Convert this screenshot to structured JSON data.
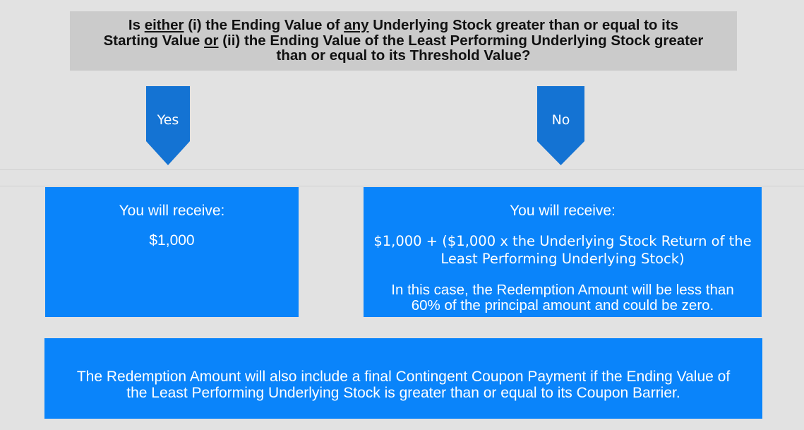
{
  "question": {
    "line1": {
      "p1": "Is ",
      "u1": "either",
      "p2": " (i) the Ending Value of ",
      "u2": "any",
      "p3": " Underlying Stock greater than or equal to its"
    },
    "line2": {
      "p1": "Starting Value ",
      "u1": "or",
      "p2": " (ii) the Ending Value of the Least Performing Underlying Stock greater"
    },
    "line3": "than or equal to its Threshold Value?"
  },
  "branches": {
    "yes_label": "Yes",
    "no_label": "No"
  },
  "outcome_yes": {
    "heading": "You will receive:",
    "amount": "$1,000"
  },
  "outcome_no": {
    "heading": "You will receive:",
    "formula_line1": "$1,000 + ($1,000 x the Underlying Stock Return of the",
    "formula_line2": "Least Performing Underlying Stock)",
    "note_line1": "In this case, the Redemption Amount will be less than",
    "note_line2": "60% of the principal amount and could be zero."
  },
  "footer_note": {
    "line1": "The Redemption Amount will also include a final Contingent Coupon Payment if the Ending Value of",
    "line2": "the Least Performing Underlying Stock is greater than or equal to its Coupon Barrier."
  },
  "colors": {
    "background": "#e2e2e2",
    "question_box": "#cbcbcb",
    "arrow": "#1473d3",
    "outcome_box": "#0a84fa"
  }
}
